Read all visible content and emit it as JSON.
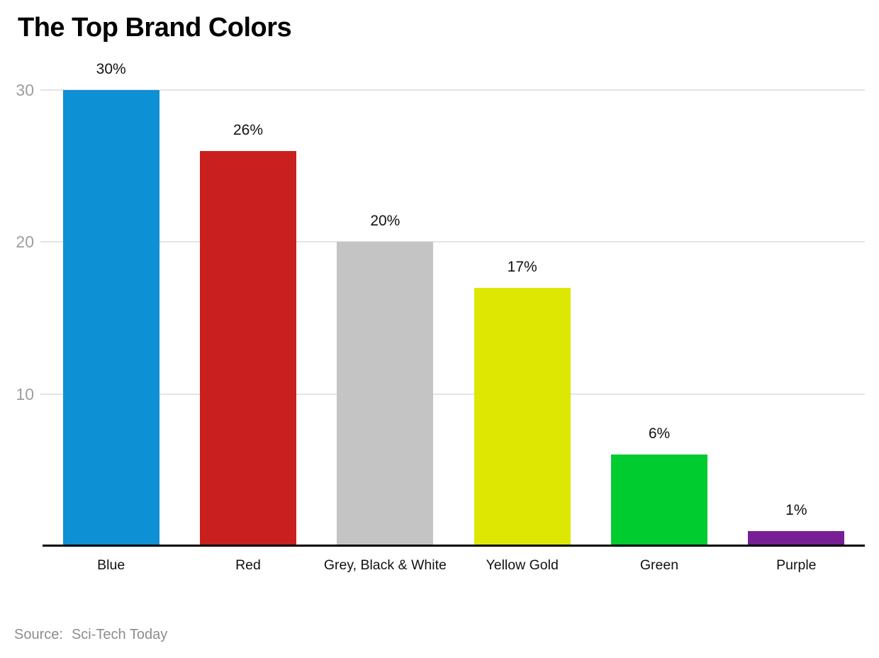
{
  "title": "The Top Brand Colors",
  "source": {
    "prefix": "Source:",
    "name": "Sci-Tech Today"
  },
  "colors": {
    "background": "#ffffff",
    "title_text": "#000000",
    "gridline": "#e4e4e4",
    "ytick_text": "#9e9e9e",
    "value_label_text": "#111111",
    "category_label_text": "#111111",
    "axis_line": "#000000",
    "source_text": "#8d8d8d"
  },
  "chart_data": {
    "type": "bar",
    "title": "The Top Brand Colors",
    "categories": [
      "Blue",
      "Red",
      "Grey, Black & White",
      "Yellow Gold",
      "Green",
      "Purple"
    ],
    "values": [
      30,
      26,
      20,
      17,
      6,
      1
    ],
    "value_labels": [
      "30%",
      "26%",
      "20%",
      "17%",
      "6%",
      "1%"
    ],
    "bar_colors": [
      "#0e90d5",
      "#c91f1f",
      "#c4c4c4",
      "#dee702",
      "#00cc30",
      "#781f96"
    ],
    "unit": "%",
    "xlabel": "",
    "ylabel": "",
    "yticks": [
      10,
      20,
      30
    ],
    "ylim": [
      0,
      30
    ],
    "grid": true,
    "legend": false,
    "source": "Sci-Tech Today"
  }
}
